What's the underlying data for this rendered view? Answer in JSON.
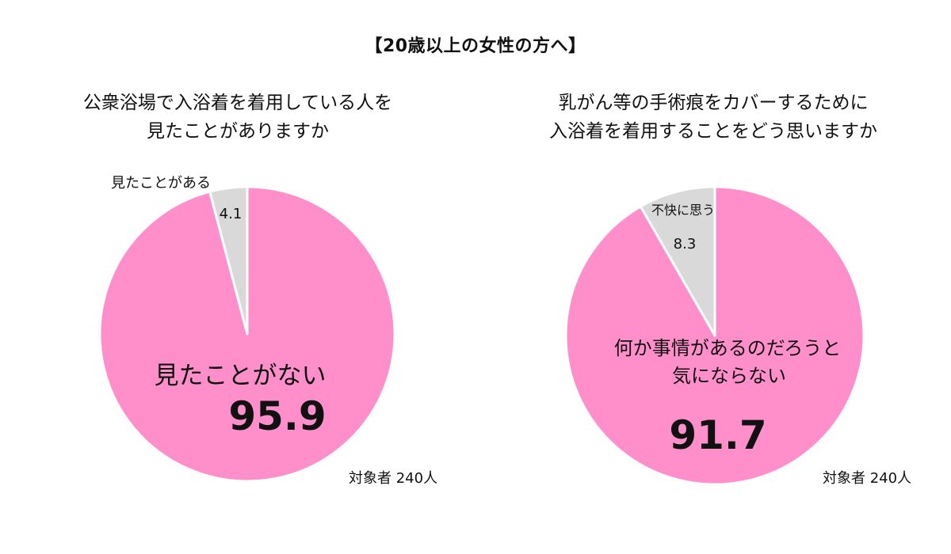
{
  "header": {
    "title": "【20歳以上の女性の方へ】"
  },
  "colors": {
    "major_slice": "#FF8FCB",
    "minor_slice": "#D9D9D9",
    "slice_border": "#FFFFFF",
    "text": "#111111"
  },
  "chart_data": [
    {
      "type": "pie",
      "question_lines": [
        "公衆浴場で入浴着を着用している人を",
        "見たことがありますか"
      ],
      "unit": "%",
      "slices": [
        {
          "label": "見たことがある",
          "value": 4.1,
          "value_label": "4.1",
          "color": "#D9D9D9"
        },
        {
          "label": "見たことがない",
          "value": 95.9,
          "value_label": "95.9",
          "color": "#FF8FCB"
        }
      ],
      "sample_note": "対象者 240人"
    },
    {
      "type": "pie",
      "question_lines": [
        "乳がん等の手術痕をカバーするために",
        "入浴着を着用することをどう思いますか"
      ],
      "unit": "%",
      "slices": [
        {
          "label": "不快に思う",
          "value": 8.3,
          "value_label": "8.3",
          "color": "#D9D9D9"
        },
        {
          "label_lines": [
            "何か事情があるのだろうと",
            "気にならない"
          ],
          "value": 91.7,
          "value_label": "91.7",
          "color": "#FF8FCB"
        }
      ],
      "sample_note": "対象者 240人"
    }
  ]
}
